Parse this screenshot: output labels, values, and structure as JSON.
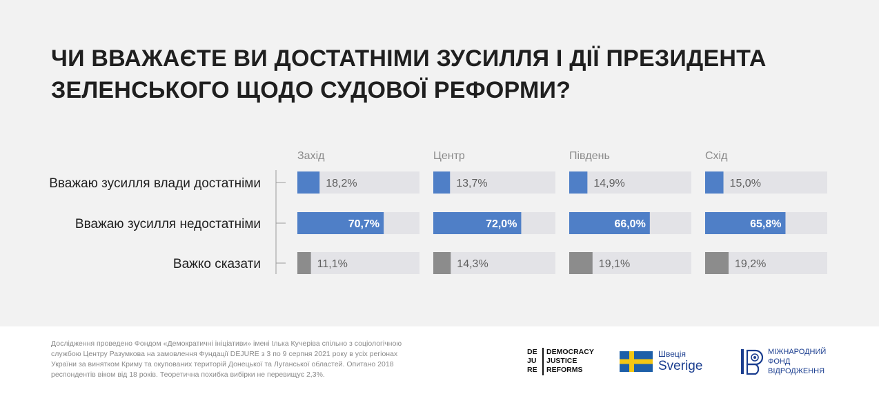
{
  "title_line1": "ЧИ ВВАЖАЄТЕ ВИ ДОСТАТНІМИ ЗУСИЛЛЯ І ДІЇ ПРЕЗИДЕНТА",
  "title_line2": "ЗЕЛЕНСЬКОГО ЩОДО СУДОВОЇ РЕФОРМИ?",
  "chart_data": {
    "type": "bar",
    "orientation": "horizontal",
    "title": "ЧИ ВВАЖАЄТЕ ВИ ДОСТАТНІМИ ЗУСИЛЛЯ І ДІЇ ПРЕЗИДЕНТА ЗЕЛЕНСЬКОГО ЩОДО СУДОВОЇ РЕФОРМИ?",
    "categories": [
      "Вважаю зусилля влади достатніми",
      "Вважаю зусилля недостатніми",
      "Важко сказати"
    ],
    "xlim": [
      0,
      100
    ],
    "unit": "%",
    "series": [
      {
        "name": "Захід",
        "values": [
          18.2,
          70.7,
          11.1
        ],
        "labels": [
          "18,2%",
          "70,7%",
          "11,1%"
        ]
      },
      {
        "name": "Центр",
        "values": [
          13.7,
          72.0,
          14.3
        ],
        "labels": [
          "13,7%",
          "72,0%",
          "14,3%"
        ]
      },
      {
        "name": "Південь",
        "values": [
          14.9,
          66.0,
          19.1
        ],
        "labels": [
          "14,9%",
          "66,0%",
          "19,1%"
        ]
      },
      {
        "name": "Схід",
        "values": [
          15.0,
          65.8,
          19.2
        ],
        "labels": [
          "15,0%",
          "65,8%",
          "19,2%"
        ]
      }
    ],
    "row_colors": [
      "#4f7fc7",
      "#4f7fc7",
      "#8c8c8c"
    ],
    "track_color": "#e3e3e7"
  },
  "footer_text": "Дослідження проведено Фондом «Демократичні ініціативи» імені Ілька Кучеріва спільно з соціологічною службою Центру Разумкова на замовлення Фундації DEJURE з 3 по 9 серпня 2021 року в усіх регіонах України за винятком Криму та окупованих територій Донецької та Луганської областей. Опитано 2018 респондентів віком від 18 років. Теоретична похибка вибірки не перевищує 2,3%.",
  "logos": {
    "dejure_col1": [
      "DE",
      "JU",
      "RE"
    ],
    "dejure_col2": [
      "DEMOCRACY",
      "JUSTICE",
      "REFORMS"
    ],
    "sweden_line1": "Швеція",
    "sweden_line2": "Sverige",
    "irf_lines": [
      "МІЖНАРОДНИЙ",
      "ФОНД",
      "ВІДРОДЖЕННЯ"
    ],
    "sweden_flag_colors": {
      "blue": "#1d5fa8",
      "yellow": "#f3c613"
    }
  }
}
